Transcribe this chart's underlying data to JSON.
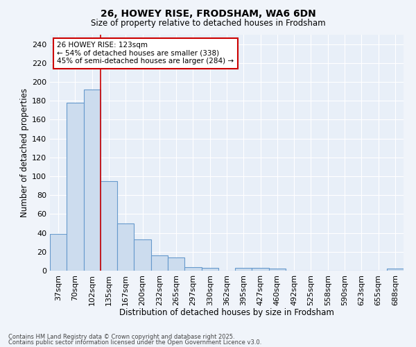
{
  "title": "26, HOWEY RISE, FRODSHAM, WA6 6DN",
  "subtitle": "Size of property relative to detached houses in Frodsham",
  "xlabel": "Distribution of detached houses by size in Frodsham",
  "ylabel": "Number of detached properties",
  "bar_color": "#ccdcee",
  "bar_edge_color": "#6699cc",
  "background_color": "#e8eff8",
  "fig_background_color": "#f0f4fa",
  "grid_color": "#ffffff",
  "categories": [
    "37sqm",
    "70sqm",
    "102sqm",
    "135sqm",
    "167sqm",
    "200sqm",
    "232sqm",
    "265sqm",
    "297sqm",
    "330sqm",
    "362sqm",
    "395sqm",
    "427sqm",
    "460sqm",
    "492sqm",
    "525sqm",
    "558sqm",
    "590sqm",
    "623sqm",
    "655sqm",
    "688sqm"
  ],
  "values": [
    39,
    178,
    192,
    95,
    50,
    33,
    16,
    14,
    4,
    3,
    0,
    3,
    3,
    2,
    0,
    0,
    0,
    0,
    0,
    0,
    2
  ],
  "red_line_x": 2.5,
  "annotation_text": "26 HOWEY RISE: 123sqm\n← 54% of detached houses are smaller (338)\n45% of semi-detached houses are larger (284) →",
  "annotation_box_color": "#ffffff",
  "annotation_box_edge": "#cc0000",
  "red_line_color": "#cc0000",
  "footnote1": "Contains HM Land Registry data © Crown copyright and database right 2025.",
  "footnote2": "Contains public sector information licensed under the Open Government Licence v3.0.",
  "ylim": [
    0,
    250
  ],
  "yticks": [
    0,
    20,
    40,
    60,
    80,
    100,
    120,
    140,
    160,
    180,
    200,
    220,
    240
  ]
}
